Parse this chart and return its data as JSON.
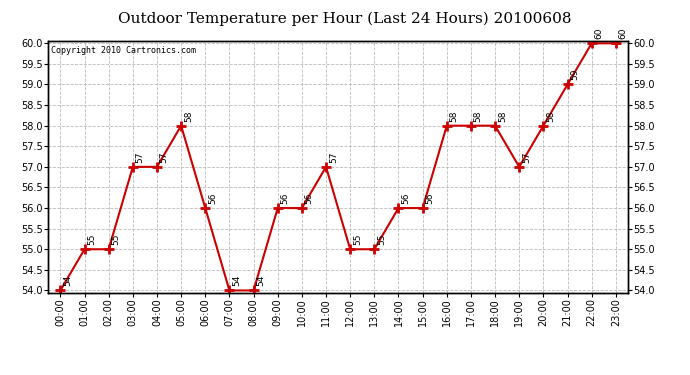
{
  "title": "Outdoor Temperature per Hour (Last 24 Hours) 20100608",
  "copyright": "Copyright 2010 Cartronics.com",
  "hours": [
    "00:00",
    "01:00",
    "02:00",
    "03:00",
    "04:00",
    "05:00",
    "06:00",
    "07:00",
    "08:00",
    "09:00",
    "10:00",
    "11:00",
    "12:00",
    "13:00",
    "14:00",
    "15:00",
    "16:00",
    "17:00",
    "18:00",
    "19:00",
    "20:00",
    "21:00",
    "22:00",
    "23:00"
  ],
  "values": [
    54,
    55,
    55,
    57,
    57,
    58,
    56,
    54,
    54,
    56,
    56,
    57,
    55,
    55,
    56,
    56,
    58,
    58,
    58,
    57,
    58,
    59,
    60,
    60
  ],
  "ylim_min": 54.0,
  "ylim_max": 60.0,
  "line_color": "#cc0000",
  "marker_color": "#cc0000",
  "bg_color": "#ffffff",
  "grid_color": "#bbbbbb",
  "title_fontsize": 11,
  "tick_fontsize": 7,
  "annotation_fontsize": 6.5,
  "copyright_fontsize": 6
}
